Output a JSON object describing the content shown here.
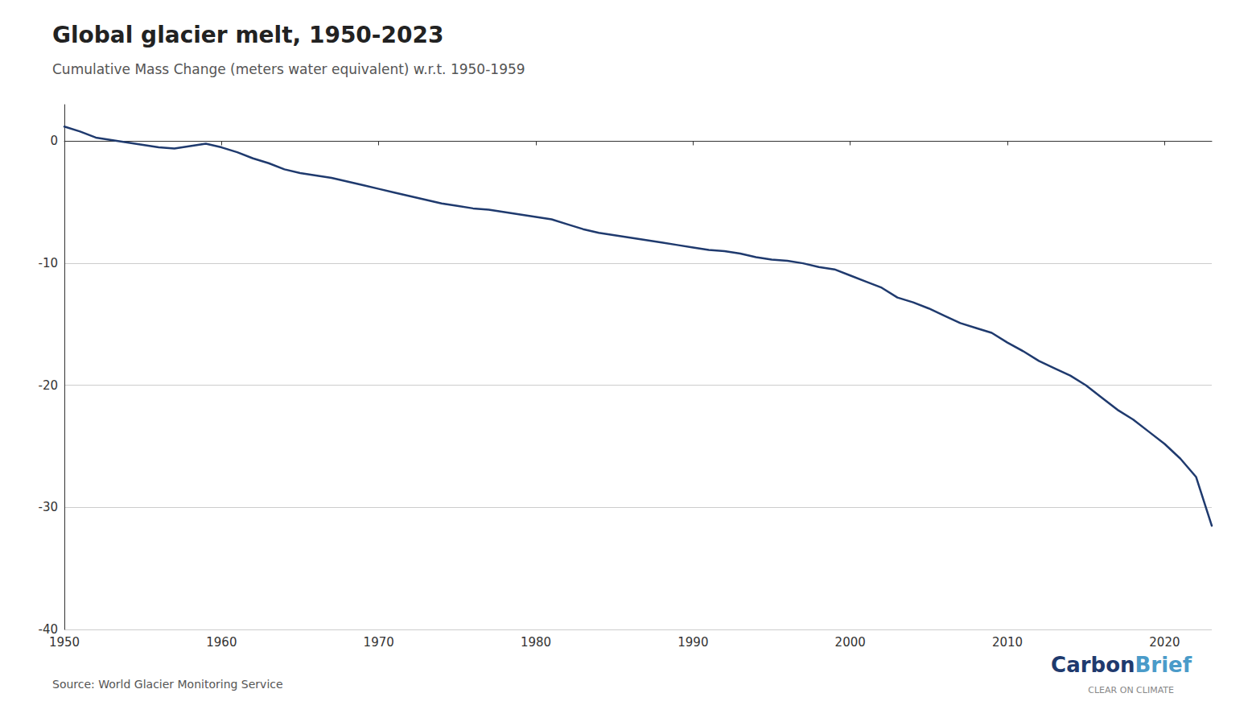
{
  "chart_data": {
    "type": "line",
    "title": "Global glacier melt, 1950-2023",
    "subtitle": "Cumulative Mass Change (meters water equivalent) w.r.t. 1950-1959",
    "source": "Source: World Glacier Monitoring Service",
    "annotations": [
      {
        "text": "Carbon",
        "color": "#1f3a6e"
      },
      {
        "text": "Brief",
        "color": "#4a9bc9"
      },
      {
        "text": "CLEAR ON CLIMATE"
      }
    ],
    "color": "#1f3a6e",
    "x": [
      1950,
      1951,
      1952,
      1953,
      1954,
      1955,
      1956,
      1957,
      1958,
      1959,
      1960,
      1961,
      1962,
      1963,
      1964,
      1965,
      1966,
      1967,
      1968,
      1969,
      1970,
      1971,
      1972,
      1973,
      1974,
      1975,
      1976,
      1977,
      1978,
      1979,
      1980,
      1981,
      1982,
      1983,
      1984,
      1985,
      1986,
      1987,
      1988,
      1989,
      1990,
      1991,
      1992,
      1993,
      1994,
      1995,
      1996,
      1997,
      1998,
      1999,
      2000,
      2001,
      2002,
      2003,
      2004,
      2005,
      2006,
      2007,
      2008,
      2009,
      2010,
      2011,
      2012,
      2013,
      2014,
      2015,
      2016,
      2017,
      2018,
      2019,
      2020,
      2021,
      2022,
      2023
    ],
    "values": [
      1.2,
      0.8,
      0.3,
      0.1,
      -0.1,
      -0.3,
      -0.5,
      -0.6,
      -0.4,
      -0.2,
      -0.5,
      -0.9,
      -1.4,
      -1.8,
      -2.3,
      -2.6,
      -2.8,
      -3.0,
      -3.3,
      -3.6,
      -3.9,
      -4.2,
      -4.5,
      -4.8,
      -5.1,
      -5.3,
      -5.5,
      -5.6,
      -5.8,
      -6.0,
      -6.2,
      -6.4,
      -6.8,
      -7.2,
      -7.5,
      -7.7,
      -7.9,
      -8.1,
      -8.3,
      -8.5,
      -8.7,
      -8.9,
      -9.0,
      -9.2,
      -9.5,
      -9.7,
      -9.8,
      -10.0,
      -10.3,
      -10.5,
      -11.0,
      -11.5,
      -12.0,
      -12.8,
      -13.2,
      -13.7,
      -14.3,
      -14.9,
      -15.3,
      -15.7,
      -16.5,
      -17.2,
      -18.0,
      -18.6,
      -19.2,
      -20.0,
      -21.0,
      -22.0,
      -22.8,
      -23.8,
      -24.8,
      -26.0,
      -27.5,
      -31.5
    ],
    "xlim": [
      1950,
      2023
    ],
    "xticks": [
      1950,
      1960,
      1970,
      1980,
      1990,
      2000,
      2010,
      2020
    ],
    "ylim": [
      -40,
      3
    ],
    "yticks": [
      0,
      -10,
      -20,
      -30,
      -40
    ],
    "grid": true
  }
}
